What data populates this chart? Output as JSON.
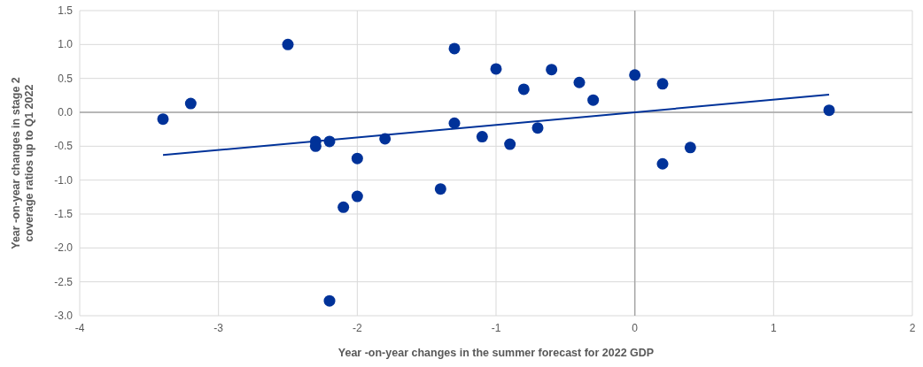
{
  "chart_data": {
    "type": "scatter",
    "xlabel": "Year -on-year changes in the summer forecast for 2022 GDP",
    "ylabel": "Year -on-year changes in stage 2\ncoverage ratios up to Q1 2022",
    "xlim": [
      -4,
      2
    ],
    "xticks": [
      -4,
      -3,
      -2,
      -1,
      0,
      1,
      2
    ],
    "ylim": [
      -3,
      1.5
    ],
    "yticks": [
      {
        "value": 1.5,
        "label": "1.5"
      },
      {
        "value": 1,
        "label": "1.0"
      },
      {
        "value": 0.5,
        "label": "0.5"
      },
      {
        "value": 0,
        "label": "0.0"
      },
      {
        "value": -0.5,
        "label": "-0.5"
      },
      {
        "value": -1,
        "label": "-1.0"
      },
      {
        "value": -1.5,
        "label": "-1.5"
      },
      {
        "value": -2,
        "label": "-2.0"
      },
      {
        "value": -2.5,
        "label": "-2.5"
      },
      {
        "value": -3,
        "label": "-3.0"
      }
    ],
    "grid": true,
    "series": [
      {
        "marker": "circle",
        "color": "#003299",
        "x": [
          -3.4,
          -3.2,
          -2.5,
          -2.3,
          -2.3,
          -2.2,
          -2.0,
          -1.8,
          -2.1,
          -2.0,
          -2.2,
          -1.4,
          -1.3,
          -1.3,
          -1.1,
          -1.0,
          -0.9,
          -0.8,
          -0.7,
          -0.6,
          -0.4,
          -0.3,
          0.0,
          0.2,
          0.2,
          0.4,
          1.4
        ],
        "values": [
          -0.1,
          0.13,
          1.0,
          -0.43,
          -0.5,
          -0.43,
          -0.68,
          -0.39,
          -1.4,
          -1.24,
          -2.78,
          -1.13,
          0.94,
          -0.16,
          -0.36,
          0.64,
          -0.47,
          0.34,
          -0.23,
          0.63,
          0.44,
          0.18,
          0.55,
          0.42,
          -0.76,
          -0.52,
          0.03
        ]
      },
      {
        "type": "line",
        "color": "#003299",
        "x": [
          -3.4,
          1.4
        ],
        "values": [
          -0.63,
          0.26
        ]
      }
    ]
  }
}
